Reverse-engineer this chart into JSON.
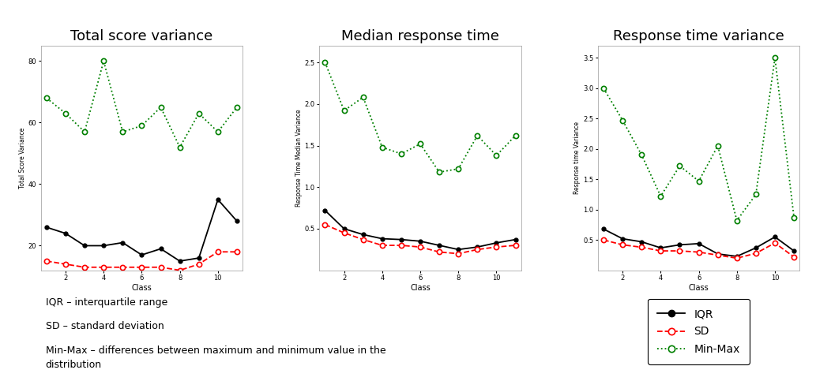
{
  "classes": [
    1,
    2,
    3,
    4,
    5,
    6,
    7,
    8,
    9,
    10,
    11
  ],
  "plot1": {
    "title": "Total score variance",
    "ylabel": "Total Score Variance",
    "iqr": [
      26,
      24,
      20,
      20,
      21,
      17,
      19,
      15,
      16,
      35,
      28
    ],
    "sd": [
      15,
      14,
      13,
      13,
      13,
      13,
      13,
      12,
      14,
      18,
      18
    ],
    "minmax": [
      68,
      63,
      57,
      80,
      57,
      59,
      65,
      52,
      63,
      57,
      65
    ],
    "ylim": [
      12,
      85
    ],
    "yticks": [
      20,
      40,
      60,
      80
    ]
  },
  "plot2": {
    "title": "Median response time",
    "ylabel": "Response Time Median Variance",
    "iqr": [
      0.72,
      0.5,
      0.43,
      0.38,
      0.37,
      0.35,
      0.3,
      0.25,
      0.28,
      0.33,
      0.37
    ],
    "sd": [
      0.55,
      0.45,
      0.37,
      0.3,
      0.3,
      0.28,
      0.22,
      0.2,
      0.25,
      0.28,
      0.3
    ],
    "minmax": [
      2.5,
      1.92,
      2.08,
      1.48,
      1.4,
      1.52,
      1.18,
      1.22,
      1.62,
      1.38,
      1.62
    ],
    "ylim": [
      0.0,
      2.7
    ],
    "yticks": [
      0.5,
      1.0,
      1.5,
      2.0,
      2.5
    ]
  },
  "plot3": {
    "title": "Response time variance",
    "ylabel": "Response time Variance",
    "iqr": [
      0.68,
      0.52,
      0.47,
      0.37,
      0.42,
      0.44,
      0.27,
      0.23,
      0.37,
      0.55,
      0.32
    ],
    "sd": [
      0.5,
      0.42,
      0.38,
      0.32,
      0.32,
      0.3,
      0.25,
      0.2,
      0.28,
      0.45,
      0.22
    ],
    "minmax": [
      3.0,
      2.47,
      1.9,
      1.22,
      1.72,
      1.47,
      2.05,
      0.82,
      1.25,
      3.5,
      0.87
    ],
    "ylim": [
      0.0,
      3.7
    ],
    "yticks": [
      0.5,
      1.0,
      1.5,
      2.0,
      2.5,
      3.0,
      3.5
    ]
  },
  "bg_color": "#ffffff",
  "annotation_lines": [
    "IQR – interquartile range",
    "SD – standard deviation",
    "Min-Max – differences between maximum and minimum value in the\ndistribution"
  ]
}
